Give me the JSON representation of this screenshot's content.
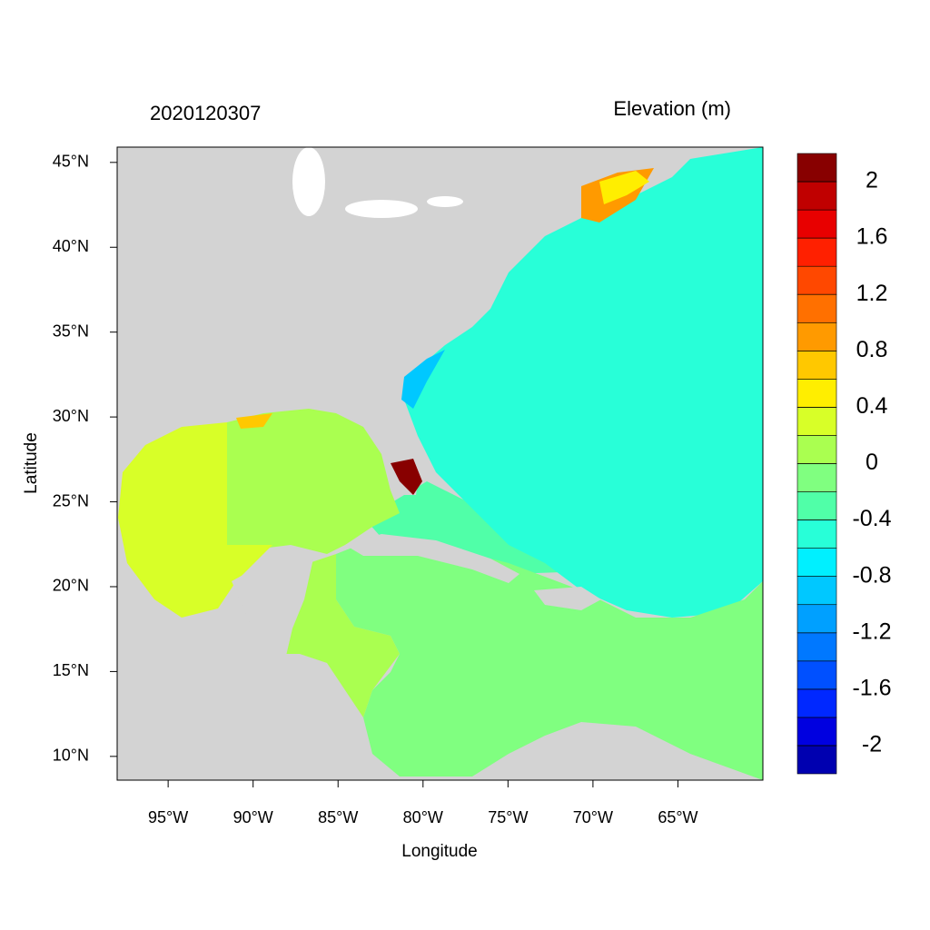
{
  "chart_data": {
    "type": "map",
    "title": "2020120307",
    "colorbar_title": "Elevation (m)",
    "x_label": "Longitude",
    "y_label": "Latitude",
    "xlim": [
      -98,
      -60
    ],
    "ylim": [
      8.6,
      45.9
    ],
    "xticks": [
      {
        "value": -95,
        "label": "95°W"
      },
      {
        "value": -90,
        "label": "90°W"
      },
      {
        "value": -85,
        "label": "85°W"
      },
      {
        "value": -80,
        "label": "80°W"
      },
      {
        "value": -75,
        "label": "75°W"
      },
      {
        "value": -70,
        "label": "70°W"
      },
      {
        "value": -65,
        "label": "65°W"
      }
    ],
    "yticks": [
      {
        "value": 10,
        "label": "10°N"
      },
      {
        "value": 15,
        "label": "15°N"
      },
      {
        "value": 20,
        "label": "20°N"
      },
      {
        "value": 25,
        "label": "25°N"
      },
      {
        "value": 30,
        "label": "30°N"
      },
      {
        "value": 35,
        "label": "35°N"
      },
      {
        "value": 40,
        "label": "40°N"
      },
      {
        "value": 45,
        "label": "45°N"
      }
    ],
    "colorbar": {
      "lim": [
        -2.2,
        2.2
      ],
      "ticks": [
        -2,
        -1.6,
        -1.2,
        -0.8,
        -0.4,
        0,
        0.4,
        0.8,
        1.2,
        1.6,
        2
      ],
      "colors": [
        "#0000b0",
        "#0000e0",
        "#0028ff",
        "#0050ff",
        "#0078ff",
        "#00a0ff",
        "#00c8ff",
        "#00f0ff",
        "#28ffd8",
        "#50ffa8",
        "#80ff80",
        "#aaff50",
        "#d8ff28",
        "#ffee00",
        "#ffc800",
        "#ff9a00",
        "#ff7000",
        "#ff4800",
        "#ff2000",
        "#e80000",
        "#c00000",
        "#880000"
      ]
    }
  }
}
